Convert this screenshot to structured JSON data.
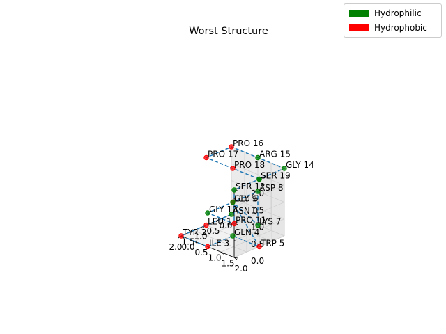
{
  "chart_data": {
    "type": "scatter-3d",
    "title": "Worst Structure",
    "xlabel": "",
    "ylabel": "",
    "zlabel": "",
    "xlim": [
      0,
      2
    ],
    "ylim": [
      0,
      2
    ],
    "zlim": [
      0,
      2
    ],
    "x_ticks": [
      "0.0",
      "0.5",
      "1.0",
      "1.5",
      "2.0"
    ],
    "y_ticks": [
      "0.0",
      "0.5",
      "1.0",
      "1.5",
      "2.0"
    ],
    "z_ticks": [
      "0.0",
      "0.5",
      "1.0",
      "1.5",
      "2.0"
    ],
    "grid": true,
    "legend_placement": "top-right",
    "colors": {
      "hydrophilic": "#008000",
      "hydrophobic": "#ff0000",
      "chain": "#1f77b4"
    },
    "legend": [
      {
        "label": "Hydrophilic",
        "color": "#008000"
      },
      {
        "label": "Hydrophobic",
        "color": "#ff0000"
      }
    ],
    "residues": [
      {
        "label": "ASN 0",
        "x": 0,
        "y": 0,
        "z": 0,
        "type": "hydrophilic"
      },
      {
        "label": "LEU 1",
        "x": 1,
        "y": 0,
        "z": 0,
        "type": "hydrophobic"
      },
      {
        "label": "TYR 2",
        "x": 2,
        "y": 0,
        "z": 0,
        "type": "hydrophobic"
      },
      {
        "label": "ILE 3",
        "x": 2,
        "y": 1,
        "z": 0,
        "type": "hydrophobic"
      },
      {
        "label": "GLN 4",
        "x": 1,
        "y": 1,
        "z": 0,
        "type": "hydrophilic"
      },
      {
        "label": "TRP 5",
        "x": 1,
        "y": 2,
        "z": 0,
        "type": "hydrophobic"
      },
      {
        "label": "LEU 6",
        "x": 1,
        "y": 1,
        "z": 1,
        "type": "hydrophobic"
      },
      {
        "label": "LYS 7",
        "x": 0,
        "y": 1,
        "z": 0,
        "type": "hydrophilic"
      },
      {
        "label": "ASP 8",
        "x": 0,
        "y": 1,
        "z": 1,
        "type": "hydrophilic"
      },
      {
        "label": "GLY 9",
        "x": 1,
        "y": 1,
        "z": 1,
        "type": "hydrophilic"
      },
      {
        "label": "GLY 10",
        "x": 2,
        "y": 1,
        "z": 1,
        "type": "hydrophilic"
      },
      {
        "label": "PRO 11",
        "x": 2,
        "y": 2,
        "z": 1,
        "type": "hydrophobic"
      },
      {
        "label": "SER 12",
        "x": 2,
        "y": 2,
        "z": 2,
        "type": "hydrophilic"
      },
      {
        "label": "SER 13",
        "x": 1,
        "y": 2,
        "z": 2,
        "type": "hydrophilic"
      },
      {
        "label": "GLY 14",
        "x": 0,
        "y": 2,
        "z": 2,
        "type": "hydrophilic"
      },
      {
        "label": "ARG 15",
        "x": 0,
        "y": 1,
        "z": 2,
        "type": "hydrophilic"
      },
      {
        "label": "PRO 16",
        "x": 0,
        "y": 0,
        "z": 2,
        "type": "hydrophobic"
      },
      {
        "label": "PRO 17",
        "x": 1,
        "y": 0,
        "z": 2,
        "type": "hydrophobic"
      },
      {
        "label": "PRO 18",
        "x": 1,
        "y": 1,
        "z": 2,
        "type": "hydrophobic"
      },
      {
        "label": "SER 19",
        "x": 1,
        "y": 2,
        "z": 2,
        "type": "hydrophilic"
      }
    ]
  }
}
